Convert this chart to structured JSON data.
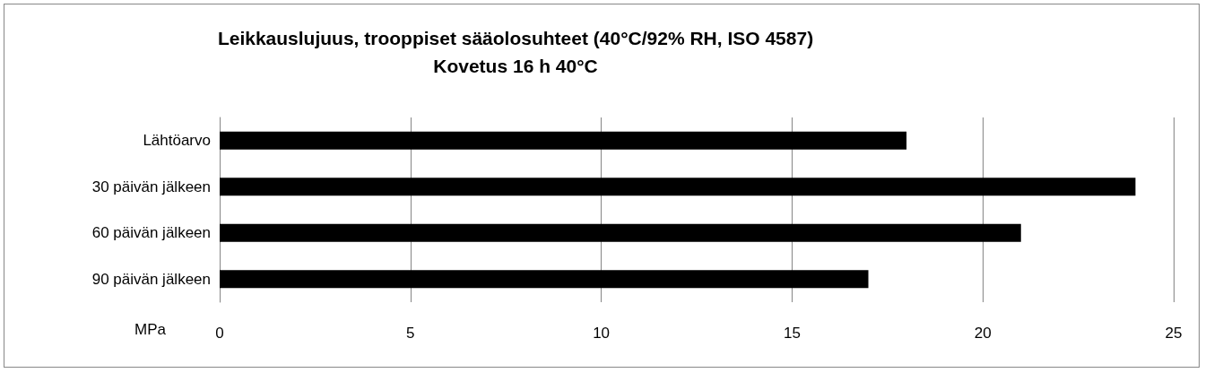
{
  "chart_data": {
    "type": "bar",
    "orientation": "horizontal",
    "title": "Leikkauslujuus, trooppiset sääolosuhteet (40°C/92% RH, ISO 4587)",
    "subtitle": "Kovetus 16 h 40°C",
    "xlabel": "MPa",
    "categories": [
      "Lähtöarvo",
      "30 päivän jälkeen",
      "60 päivän jälkeen",
      "90 päivän jälkeen"
    ],
    "values": [
      18,
      24,
      21,
      17
    ],
    "color": "#000000",
    "xlim": [
      0,
      25
    ],
    "xticks": [
      0,
      5,
      10,
      15,
      20,
      25
    ],
    "grid": "x"
  }
}
